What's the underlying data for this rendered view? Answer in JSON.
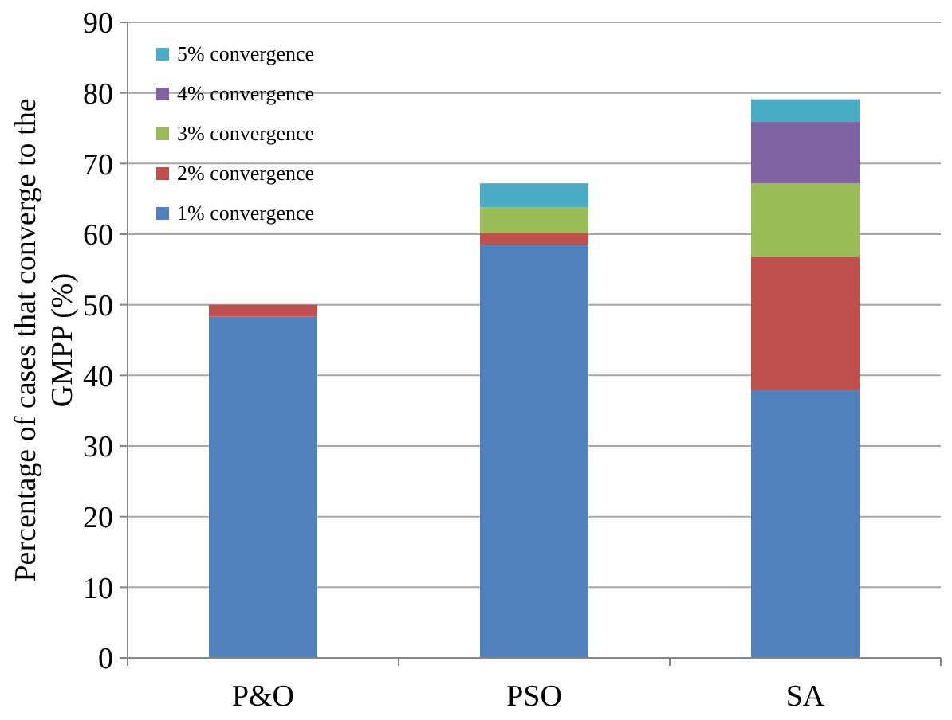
{
  "chart_data": {
    "type": "bar",
    "stacked": true,
    "ylabel": "Percentage of cases that converge to the\nGMPP (%)",
    "categories": [
      "P&O",
      "PSO",
      "SA"
    ],
    "series": [
      {
        "name": "1% convergence",
        "color": "#4f81bd",
        "values": [
          48.3,
          58.5,
          37.9
        ]
      },
      {
        "name": "2% convergence",
        "color": "#c0504d",
        "values": [
          1.7,
          1.7,
          18.9
        ]
      },
      {
        "name": "3% convergence",
        "color": "#9bbb59",
        "values": [
          0,
          3.6,
          10.4
        ]
      },
      {
        "name": "4% convergence",
        "color": "#8064a2",
        "values": [
          0,
          0,
          8.7
        ]
      },
      {
        "name": "5% convergence",
        "color": "#4bacc6",
        "values": [
          0,
          3.4,
          3.2
        ]
      }
    ],
    "ylim": [
      0,
      90
    ],
    "yticks": [
      0,
      10,
      20,
      30,
      40,
      50,
      60,
      70,
      80,
      90
    ],
    "grid": "y",
    "legend": "top left"
  }
}
